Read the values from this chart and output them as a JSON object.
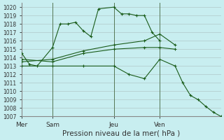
{
  "background_color": "#c8eef0",
  "grid_color": "#b0c8c8",
  "line_color": "#1a5c1a",
  "title": "Pression niveau de la mer( hPa )",
  "ylim": [
    1007,
    1020.5
  ],
  "yticks": [
    1007,
    1008,
    1009,
    1010,
    1011,
    1012,
    1013,
    1014,
    1015,
    1016,
    1017,
    1018,
    1019,
    1020
  ],
  "xtick_labels": [
    "Mer",
    "Sam",
    "Jeu",
    "Ven"
  ],
  "xtick_positions": [
    0,
    4,
    12,
    18
  ],
  "vline_positions": [
    0,
    4,
    12,
    18
  ],
  "xlim": [
    0,
    26
  ],
  "lines": [
    {
      "x": [
        0,
        1,
        2,
        4,
        5,
        6,
        7,
        8,
        9,
        10,
        12,
        13,
        14,
        15,
        16,
        17,
        18
      ],
      "y": [
        1014.5,
        1013.2,
        1013.0,
        1015.2,
        1018.0,
        1018.0,
        1018.2,
        1017.2,
        1016.5,
        1019.8,
        1020.0,
        1019.2,
        1019.2,
        1019.0,
        1019.0,
        1017.0,
        1016.0
      ]
    },
    {
      "x": [
        0,
        4,
        8,
        12,
        16,
        18,
        20
      ],
      "y": [
        1013.5,
        1013.8,
        1014.8,
        1015.5,
        1016.0,
        1016.8,
        1015.5
      ]
    },
    {
      "x": [
        0,
        4,
        8,
        12,
        16,
        18,
        20
      ],
      "y": [
        1013.8,
        1013.5,
        1014.5,
        1015.0,
        1015.2,
        1015.2,
        1015.0
      ]
    },
    {
      "x": [
        0,
        4,
        8,
        12,
        14,
        16,
        18,
        20,
        21,
        22,
        23,
        24,
        25,
        26
      ],
      "y": [
        1013.0,
        1013.0,
        1013.0,
        1013.0,
        1012.0,
        1011.5,
        1013.8,
        1013.0,
        1011.0,
        1009.5,
        1009.0,
        1008.2,
        1007.5,
        1007.0
      ]
    }
  ]
}
